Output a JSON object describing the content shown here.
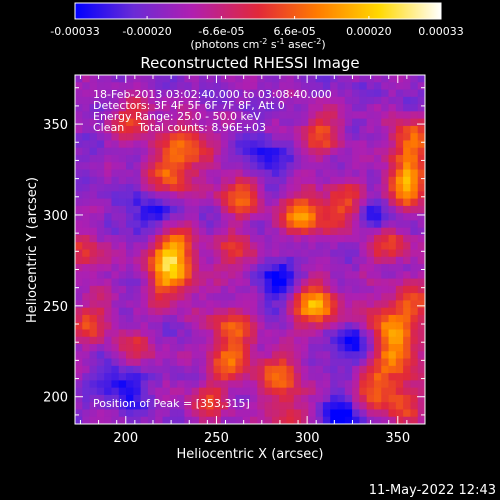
{
  "colorbar": {
    "ticks": [
      "-0.00033",
      "-0.00020",
      "-6.6e-05",
      "6.6e-05",
      "0.00020",
      "0.00033"
    ],
    "tick_values": [
      -0.00033,
      -0.0002,
      -6.6e-05,
      6.6e-05,
      0.0002,
      0.00033
    ],
    "units": {
      "prefix": "(photons cm",
      "exp1": "-2",
      "s": " s",
      "exp2": "-1",
      "asec": " asec",
      "exp3": "-2",
      "close": ")"
    }
  },
  "annotations": {
    "time_range": "18-Feb-2013 03:02:40.000 to 03:08:40.000",
    "detectors": "Detectors: 3F 4F 5F 6F 7F 8F, Att 0",
    "energy": "Energy Range: 25.0 - 50.0 keV",
    "clean": "Clean    Total counts: 8.96E+03",
    "peak": "Position of Peak = [353,315]"
  },
  "footer": {
    "timestamp": "11-May-2022 12:43"
  },
  "colors": {
    "background": "#000000",
    "foreground": "#ffffff",
    "colormap": [
      "#0000ff",
      "#6a2bd6",
      "#b01fb0",
      "#e1283a",
      "#ff7a00",
      "#ffd800",
      "#ffffff"
    ]
  },
  "chart_data": {
    "type": "heatmap",
    "title": "Reconstructed RHESSI Image",
    "xlabel": "Heliocentric X (arcsec)",
    "ylabel": "Heliocentric Y (arcsec)",
    "xlim": [
      172,
      365
    ],
    "ylim": [
      185,
      377
    ],
    "x_ticks": [
      200,
      250,
      300,
      350
    ],
    "y_ticks": [
      200,
      250,
      300,
      350
    ],
    "grid": false,
    "value_range": [
      -0.00033,
      0.00033
    ],
    "grid_shape": [
      48,
      48
    ],
    "peak": [
      353,
      315
    ],
    "bright_regions": [
      {
        "x": 205,
        "y": 352,
        "level": 0.55
      },
      {
        "x": 235,
        "y": 340,
        "level": 0.6
      },
      {
        "x": 225,
        "y": 323,
        "level": 0.7
      },
      {
        "x": 263,
        "y": 312,
        "level": 0.65
      },
      {
        "x": 308,
        "y": 345,
        "level": 0.55
      },
      {
        "x": 298,
        "y": 300,
        "level": 0.8
      },
      {
        "x": 322,
        "y": 305,
        "level": 0.6
      },
      {
        "x": 355,
        "y": 315,
        "level": 1.0
      },
      {
        "x": 357,
        "y": 340,
        "level": 0.75
      },
      {
        "x": 225,
        "y": 280,
        "level": 0.95
      },
      {
        "x": 262,
        "y": 278,
        "level": 0.5
      },
      {
        "x": 345,
        "y": 285,
        "level": 0.6
      },
      {
        "x": 178,
        "y": 278,
        "level": 0.45
      },
      {
        "x": 225,
        "y": 263,
        "level": 0.7
      },
      {
        "x": 305,
        "y": 250,
        "level": 0.95
      },
      {
        "x": 340,
        "y": 242,
        "level": 0.55
      },
      {
        "x": 360,
        "y": 250,
        "level": 0.6
      },
      {
        "x": 180,
        "y": 242,
        "level": 0.5
      },
      {
        "x": 258,
        "y": 240,
        "level": 0.55
      },
      {
        "x": 350,
        "y": 225,
        "level": 0.8
      },
      {
        "x": 258,
        "y": 220,
        "level": 0.6
      },
      {
        "x": 205,
        "y": 222,
        "level": 0.55
      },
      {
        "x": 285,
        "y": 212,
        "level": 0.65
      },
      {
        "x": 335,
        "y": 205,
        "level": 0.6
      },
      {
        "x": 352,
        "y": 197,
        "level": 0.55
      },
      {
        "x": 245,
        "y": 197,
        "level": 0.45
      },
      {
        "x": 290,
        "y": 190,
        "level": 0.45
      },
      {
        "x": 212,
        "y": 300,
        "level": -0.4
      },
      {
        "x": 340,
        "y": 300,
        "level": -0.55
      },
      {
        "x": 282,
        "y": 265,
        "level": -0.45
      },
      {
        "x": 200,
        "y": 210,
        "level": -0.6
      },
      {
        "x": 320,
        "y": 190,
        "level": -0.5
      },
      {
        "x": 275,
        "y": 330,
        "level": -0.4
      },
      {
        "x": 325,
        "y": 230,
        "level": -0.45
      }
    ]
  }
}
